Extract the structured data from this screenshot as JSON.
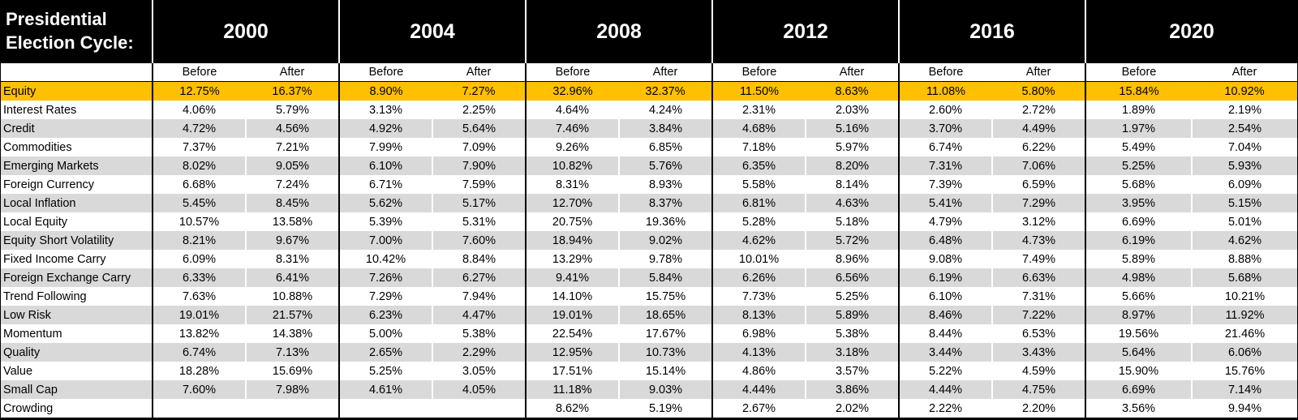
{
  "header": {
    "title_line1": "Presidential",
    "title_line2": "Election Cycle:",
    "years": [
      "2000",
      "2004",
      "2008",
      "2012",
      "2016",
      "2020"
    ],
    "sub_before": "Before",
    "sub_after": "After"
  },
  "colors": {
    "highlight_gold": "#FFC000",
    "stripe_gray": "#D9D9D9",
    "header_bg": "#000000",
    "header_text": "#FFFFFF"
  },
  "table": {
    "rows": [
      {
        "label": "Equity",
        "highlight": true,
        "values": [
          "12.75%",
          "16.37%",
          "8.90%",
          "7.27%",
          "32.96%",
          "32.37%",
          "11.50%",
          "8.63%",
          "11.08%",
          "5.80%",
          "15.84%",
          "10.92%"
        ]
      },
      {
        "label": "Interest Rates",
        "highlight": false,
        "values": [
          "4.06%",
          "5.79%",
          "3.13%",
          "2.25%",
          "4.64%",
          "4.24%",
          "2.31%",
          "2.03%",
          "2.60%",
          "2.72%",
          "1.89%",
          "2.19%"
        ]
      },
      {
        "label": "Credit",
        "highlight": false,
        "values": [
          "4.72%",
          "4.56%",
          "4.92%",
          "5.64%",
          "7.46%",
          "3.84%",
          "4.68%",
          "5.16%",
          "3.70%",
          "4.49%",
          "1.97%",
          "2.54%"
        ]
      },
      {
        "label": "Commodities",
        "highlight": false,
        "values": [
          "7.37%",
          "7.21%",
          "7.99%",
          "7.09%",
          "9.26%",
          "6.85%",
          "7.18%",
          "5.97%",
          "6.74%",
          "6.22%",
          "5.49%",
          "7.04%"
        ]
      },
      {
        "label": "Emerging Markets",
        "highlight": false,
        "values": [
          "8.02%",
          "9.05%",
          "6.10%",
          "7.90%",
          "10.82%",
          "5.76%",
          "6.35%",
          "8.20%",
          "7.31%",
          "7.06%",
          "5.25%",
          "5.93%"
        ]
      },
      {
        "label": "Foreign Currency",
        "highlight": false,
        "values": [
          "6.68%",
          "7.24%",
          "6.71%",
          "7.59%",
          "8.31%",
          "8.93%",
          "5.58%",
          "8.14%",
          "7.39%",
          "6.59%",
          "5.68%",
          "6.09%"
        ]
      },
      {
        "label": "Local Inflation",
        "highlight": false,
        "values": [
          "5.45%",
          "8.45%",
          "5.62%",
          "5.17%",
          "12.70%",
          "8.37%",
          "6.81%",
          "4.63%",
          "5.41%",
          "7.29%",
          "3.95%",
          "5.15%"
        ]
      },
      {
        "label": "Local Equity",
        "highlight": false,
        "values": [
          "10.57%",
          "13.58%",
          "5.39%",
          "5.31%",
          "20.75%",
          "19.36%",
          "5.28%",
          "5.18%",
          "4.79%",
          "3.12%",
          "6.69%",
          "5.01%"
        ]
      },
      {
        "label": "Equity Short Volatility",
        "highlight": false,
        "values": [
          "8.21%",
          "9.67%",
          "7.00%",
          "7.60%",
          "18.94%",
          "9.02%",
          "4.62%",
          "5.72%",
          "6.48%",
          "4.73%",
          "6.19%",
          "4.62%"
        ]
      },
      {
        "label": "Fixed Income Carry",
        "highlight": false,
        "values": [
          "6.09%",
          "8.31%",
          "10.42%",
          "8.84%",
          "13.29%",
          "9.78%",
          "10.01%",
          "8.96%",
          "9.08%",
          "7.49%",
          "5.89%",
          "8.88%"
        ]
      },
      {
        "label": "Foreign Exchange Carry",
        "highlight": false,
        "values": [
          "6.33%",
          "6.41%",
          "7.26%",
          "6.27%",
          "9.41%",
          "5.84%",
          "6.26%",
          "6.56%",
          "6.19%",
          "6.63%",
          "4.98%",
          "5.68%"
        ]
      },
      {
        "label": "Trend Following",
        "highlight": false,
        "values": [
          "7.63%",
          "10.88%",
          "7.29%",
          "7.94%",
          "14.10%",
          "15.75%",
          "7.73%",
          "5.25%",
          "6.10%",
          "7.31%",
          "5.66%",
          "10.21%"
        ]
      },
      {
        "label": "Low Risk",
        "highlight": false,
        "values": [
          "19.01%",
          "21.57%",
          "6.23%",
          "4.47%",
          "19.01%",
          "18.65%",
          "8.13%",
          "5.89%",
          "8.46%",
          "7.22%",
          "8.97%",
          "11.92%"
        ]
      },
      {
        "label": "Momentum",
        "highlight": false,
        "values": [
          "13.82%",
          "14.38%",
          "5.00%",
          "5.38%",
          "22.54%",
          "17.67%",
          "6.98%",
          "5.38%",
          "8.44%",
          "6.53%",
          "19.56%",
          "21.46%"
        ]
      },
      {
        "label": "Quality",
        "highlight": false,
        "values": [
          "6.74%",
          "7.13%",
          "2.65%",
          "2.29%",
          "12.95%",
          "10.73%",
          "4.13%",
          "3.18%",
          "3.44%",
          "3.43%",
          "5.64%",
          "6.06%"
        ]
      },
      {
        "label": "Value",
        "highlight": false,
        "values": [
          "18.28%",
          "15.69%",
          "5.25%",
          "3.05%",
          "17.51%",
          "15.14%",
          "4.86%",
          "3.57%",
          "5.22%",
          "4.59%",
          "15.90%",
          "15.76%"
        ]
      },
      {
        "label": "Small Cap",
        "highlight": false,
        "values": [
          "7.60%",
          "7.98%",
          "4.61%",
          "4.05%",
          "11.18%",
          "9.03%",
          "4.44%",
          "3.86%",
          "4.44%",
          "4.75%",
          "6.69%",
          "7.14%"
        ]
      },
      {
        "label": "Crowding",
        "highlight": false,
        "values": [
          "",
          "",
          "",
          "",
          "8.62%",
          "5.19%",
          "2.67%",
          "2.02%",
          "2.22%",
          "2.20%",
          "3.56%",
          "9.94%"
        ]
      }
    ]
  }
}
